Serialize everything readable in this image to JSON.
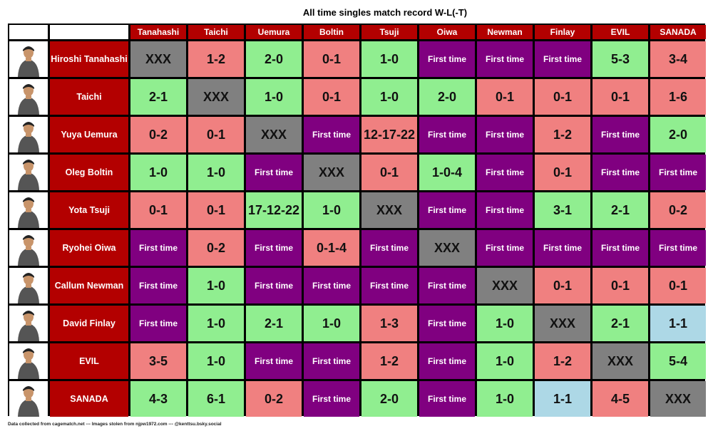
{
  "chart_data": {
    "type": "table",
    "title": "All time singles match record W-L(-T)",
    "columns": [
      "Tanahashi",
      "Taichi",
      "Uemura",
      "Boltin",
      "Tsuji",
      "Oiwa",
      "Newman",
      "Finlay",
      "EVIL",
      "SANADA"
    ],
    "rows": [
      {
        "name": "Hiroshi Tanahashi",
        "values": [
          "XXX",
          "1-2",
          "2-0",
          "0-1",
          "1-0",
          "First time",
          "First time",
          "First time",
          "5-3",
          "3-4"
        ]
      },
      {
        "name": "Taichi",
        "values": [
          "2-1",
          "XXX",
          "1-0",
          "0-1",
          "1-0",
          "2-0",
          "0-1",
          "0-1",
          "0-1",
          "1-6"
        ]
      },
      {
        "name": "Yuya Uemura",
        "values": [
          "0-2",
          "0-1",
          "XXX",
          "First time",
          "12-17-22",
          "First time",
          "First time",
          "1-2",
          "First time",
          "2-0"
        ]
      },
      {
        "name": "Oleg Boltin",
        "values": [
          "1-0",
          "1-0",
          "First time",
          "XXX",
          "0-1",
          "1-0-4",
          "First time",
          "0-1",
          "First time",
          "First time"
        ]
      },
      {
        "name": "Yota Tsuji",
        "values": [
          "0-1",
          "0-1",
          "17-12-22",
          "1-0",
          "XXX",
          "First time",
          "First time",
          "3-1",
          "2-1",
          "0-2"
        ]
      },
      {
        "name": "Ryohei Oiwa",
        "values": [
          "First time",
          "0-2",
          "First time",
          "0-1-4",
          "First time",
          "XXX",
          "First time",
          "First time",
          "First time",
          "First time"
        ]
      },
      {
        "name": "Callum Newman",
        "values": [
          "First time",
          "1-0",
          "First time",
          "First time",
          "First time",
          "First time",
          "XXX",
          "0-1",
          "0-1",
          "0-1"
        ]
      },
      {
        "name": "David Finlay",
        "values": [
          "First time",
          "1-0",
          "2-1",
          "1-0",
          "1-3",
          "First time",
          "1-0",
          "XXX",
          "2-1",
          "1-1"
        ]
      },
      {
        "name": "EVIL",
        "values": [
          "3-5",
          "1-0",
          "First time",
          "First time",
          "1-2",
          "First time",
          "1-0",
          "1-2",
          "XXX",
          "5-4"
        ]
      },
      {
        "name": "SANADA",
        "values": [
          "4-3",
          "6-1",
          "0-2",
          "First time",
          "2-0",
          "First time",
          "1-0",
          "1-1",
          "4-5",
          "XXX"
        ]
      }
    ],
    "statuses": [
      [
        "self",
        "loss",
        "win",
        "loss",
        "win",
        "first",
        "first",
        "first",
        "win",
        "loss"
      ],
      [
        "win",
        "self",
        "win",
        "loss",
        "win",
        "win",
        "loss",
        "loss",
        "loss",
        "loss"
      ],
      [
        "loss",
        "loss",
        "self",
        "first",
        "loss",
        "first",
        "first",
        "loss",
        "first",
        "win"
      ],
      [
        "win",
        "win",
        "first",
        "self",
        "loss",
        "win",
        "first",
        "loss",
        "first",
        "first"
      ],
      [
        "loss",
        "loss",
        "win",
        "win",
        "self",
        "first",
        "first",
        "win",
        "win",
        "loss"
      ],
      [
        "first",
        "loss",
        "first",
        "loss",
        "first",
        "self",
        "first",
        "first",
        "first",
        "first"
      ],
      [
        "first",
        "win",
        "first",
        "first",
        "first",
        "first",
        "self",
        "loss",
        "loss",
        "loss"
      ],
      [
        "first",
        "win",
        "win",
        "win",
        "loss",
        "first",
        "win",
        "self",
        "win",
        "tie"
      ],
      [
        "loss",
        "win",
        "first",
        "first",
        "loss",
        "first",
        "win",
        "loss",
        "self",
        "win"
      ],
      [
        "win",
        "win",
        "loss",
        "first",
        "win",
        "first",
        "win",
        "tie",
        "loss",
        "self"
      ]
    ],
    "legend": {
      "win": "#90ee90",
      "loss": "#f08080",
      "tie": "#add8e6",
      "first": "#800080",
      "self": "#808080"
    }
  },
  "colors": {
    "header_bg": "#b30000",
    "header_text": "#ffffff",
    "grid_lines": "#000000"
  },
  "footer": "Data collected from cagematch.net --- Images stolen from njpw1972.com --- @kenttsu.bsky.social"
}
